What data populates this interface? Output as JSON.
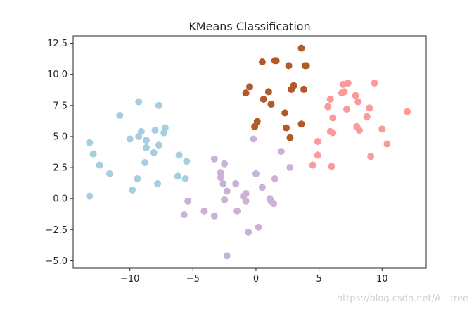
{
  "chart_data": {
    "type": "scatter",
    "title": "KMeans Classification",
    "xlabel": "",
    "ylabel": "",
    "xlim": [
      -14.5,
      13.5
    ],
    "ylim": [
      -5.6,
      13.1
    ],
    "xticks": [
      -10,
      -5,
      0,
      5,
      10
    ],
    "xtick_labels": [
      "−10",
      "−5",
      "0",
      "5",
      "10"
    ],
    "yticks": [
      -5.0,
      -2.5,
      0.0,
      2.5,
      5.0,
      7.5,
      10.0,
      12.5
    ],
    "ytick_labels": [
      "−5.0",
      "−2.5",
      "0.0",
      "2.5",
      "5.0",
      "7.5",
      "10.0",
      "12.5"
    ],
    "grid": false,
    "legend": "none",
    "series": [
      {
        "color": "#a6cee3",
        "points": [
          [
            -13.2,
            4.5
          ],
          [
            -12.9,
            3.6
          ],
          [
            -12.4,
            2.7
          ],
          [
            -11.6,
            2.0
          ],
          [
            -13.2,
            0.2
          ],
          [
            -10.8,
            6.7
          ],
          [
            -9.3,
            7.8
          ],
          [
            -10.0,
            4.8
          ],
          [
            -9.3,
            5.0
          ],
          [
            -9.1,
            5.4
          ],
          [
            -8.7,
            4.7
          ],
          [
            -8.7,
            4.1
          ],
          [
            -8.8,
            2.9
          ],
          [
            -9.4,
            1.6
          ],
          [
            -9.8,
            0.7
          ],
          [
            -8.1,
            3.7
          ],
          [
            -8.0,
            5.5
          ],
          [
            -7.7,
            4.3
          ],
          [
            -7.7,
            7.5
          ],
          [
            -7.3,
            5.3
          ],
          [
            -7.2,
            5.7
          ],
          [
            -7.8,
            1.2
          ],
          [
            -6.1,
            3.5
          ],
          [
            -6.2,
            1.8
          ],
          [
            -5.6,
            1.6
          ],
          [
            -5.5,
            3.0
          ]
        ]
      },
      {
        "color": "#cab2d6",
        "points": [
          [
            -5.4,
            -0.2
          ],
          [
            -5.7,
            -1.3
          ],
          [
            -4.1,
            -1.0
          ],
          [
            -3.3,
            -1.4
          ],
          [
            -3.3,
            3.2
          ],
          [
            -2.5,
            2.8
          ],
          [
            -2.8,
            2.1
          ],
          [
            -2.8,
            1.7
          ],
          [
            -2.6,
            1.2
          ],
          [
            -2.3,
            0.6
          ],
          [
            -1.6,
            1.2
          ],
          [
            -2.5,
            -0.1
          ],
          [
            -1.5,
            -1.0
          ],
          [
            -1.0,
            0.2
          ],
          [
            -0.8,
            0.4
          ],
          [
            -0.8,
            -0.2
          ],
          [
            -0.6,
            -2.7
          ],
          [
            -2.3,
            -4.6
          ],
          [
            -0.2,
            4.8
          ],
          [
            0.0,
            2.0
          ],
          [
            0.5,
            0.9
          ],
          [
            0.2,
            -2.3
          ],
          [
            1.1,
            0.0
          ],
          [
            1.4,
            -0.4
          ],
          [
            1.2,
            -0.2
          ],
          [
            1.5,
            1.6
          ],
          [
            2.0,
            3.8
          ],
          [
            2.7,
            2.5
          ]
        ]
      },
      {
        "color": "#b15928",
        "points": [
          [
            0.5,
            11.0
          ],
          [
            1.5,
            11.1
          ],
          [
            1.6,
            11.1
          ],
          [
            2.6,
            10.7
          ],
          [
            3.6,
            12.1
          ],
          [
            3.9,
            10.7
          ],
          [
            4.0,
            10.7
          ],
          [
            -0.5,
            9.0
          ],
          [
            -0.8,
            8.5
          ],
          [
            1.0,
            8.6
          ],
          [
            0.6,
            8.0
          ],
          [
            1.2,
            7.6
          ],
          [
            2.8,
            8.8
          ],
          [
            3.0,
            9.1
          ],
          [
            3.8,
            8.8
          ],
          [
            2.3,
            6.9
          ],
          [
            3.6,
            6.0
          ],
          [
            2.4,
            5.7
          ],
          [
            2.7,
            4.9
          ],
          [
            -0.1,
            5.8
          ],
          [
            0.1,
            6.2
          ]
        ]
      },
      {
        "color": "#fb9a99",
        "points": [
          [
            6.9,
            9.2
          ],
          [
            7.3,
            9.3
          ],
          [
            9.4,
            9.3
          ],
          [
            6.8,
            8.5
          ],
          [
            7.0,
            8.6
          ],
          [
            7.9,
            8.3
          ],
          [
            8.1,
            7.8
          ],
          [
            9.0,
            7.3
          ],
          [
            12.0,
            7.0
          ],
          [
            5.9,
            8.0
          ],
          [
            5.7,
            7.4
          ],
          [
            6.1,
            6.5
          ],
          [
            7.2,
            7.2
          ],
          [
            8.8,
            6.6
          ],
          [
            8.0,
            5.8
          ],
          [
            8.2,
            5.5
          ],
          [
            10.0,
            5.6
          ],
          [
            5.9,
            5.4
          ],
          [
            6.1,
            5.3
          ],
          [
            4.9,
            4.6
          ],
          [
            4.9,
            3.5
          ],
          [
            10.4,
            4.4
          ],
          [
            9.1,
            3.4
          ],
          [
            4.5,
            2.7
          ],
          [
            6.0,
            2.6
          ]
        ]
      }
    ]
  },
  "watermark": "https://blog.csdn.net/A__tree"
}
